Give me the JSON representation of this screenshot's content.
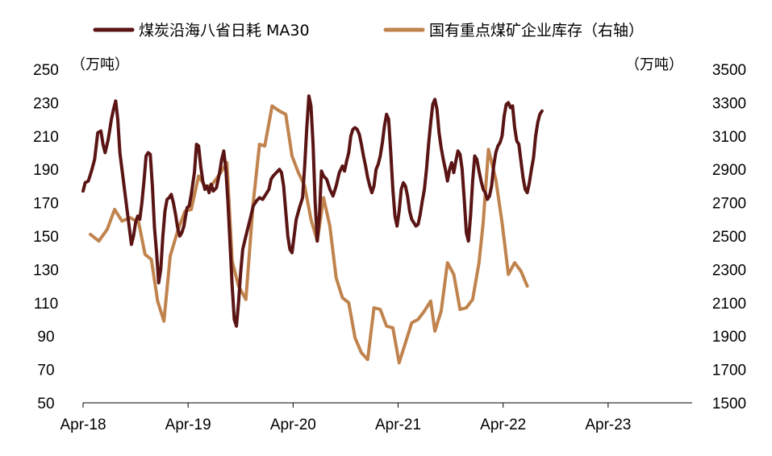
{
  "chart_data": {
    "type": "line",
    "legend_position": "top",
    "grid": false,
    "x_ticks": [
      "Apr-18",
      "Apr-19",
      "Apr-20",
      "Apr-21",
      "Apr-22",
      "Apr-23"
    ],
    "y_left": {
      "unit": "（万吨）",
      "ticks": [
        50,
        70,
        90,
        110,
        130,
        150,
        170,
        190,
        210,
        230,
        250
      ],
      "range": [
        50,
        250
      ]
    },
    "y_right": {
      "unit": "（万吨）",
      "ticks": [
        1500,
        1700,
        1900,
        2100,
        2300,
        2500,
        2700,
        2900,
        3100,
        3300,
        3500
      ],
      "range": [
        1500,
        3500
      ]
    },
    "x_range": [
      2018.25,
      2024.05
    ],
    "series": [
      {
        "name": "煤炭沿海八省日耗 MA30",
        "axis": "left",
        "color": "#5a1414",
        "points": [
          [
            2018.25,
            177
          ],
          [
            2018.27,
            182
          ],
          [
            2018.3,
            183
          ],
          [
            2018.33,
            189
          ],
          [
            2018.36,
            196
          ],
          [
            2018.39,
            212
          ],
          [
            2018.42,
            213
          ],
          [
            2018.44,
            205
          ],
          [
            2018.46,
            200
          ],
          [
            2018.49,
            208
          ],
          [
            2018.52,
            220
          ],
          [
            2018.54,
            226
          ],
          [
            2018.56,
            231
          ],
          [
            2018.58,
            220
          ],
          [
            2018.6,
            200
          ],
          [
            2018.63,
            185
          ],
          [
            2018.65,
            175
          ],
          [
            2018.67,
            165
          ],
          [
            2018.69,
            155
          ],
          [
            2018.71,
            145
          ],
          [
            2018.73,
            150
          ],
          [
            2018.75,
            158
          ],
          [
            2018.77,
            162
          ],
          [
            2018.79,
            160
          ],
          [
            2018.81,
            170
          ],
          [
            2018.83,
            183
          ],
          [
            2018.85,
            198
          ],
          [
            2018.87,
            200
          ],
          [
            2018.89,
            199
          ],
          [
            2018.91,
            180
          ],
          [
            2018.93,
            155
          ],
          [
            2018.95,
            140
          ],
          [
            2018.97,
            122
          ],
          [
            2018.99,
            130
          ],
          [
            2019.01,
            150
          ],
          [
            2019.03,
            165
          ],
          [
            2019.05,
            172
          ],
          [
            2019.07,
            173
          ],
          [
            2019.09,
            175
          ],
          [
            2019.11,
            170
          ],
          [
            2019.13,
            163
          ],
          [
            2019.15,
            155
          ],
          [
            2019.17,
            150
          ],
          [
            2019.19,
            152
          ],
          [
            2019.21,
            156
          ],
          [
            2019.24,
            167
          ],
          [
            2019.26,
            168
          ],
          [
            2019.28,
            175
          ],
          [
            2019.31,
            188
          ],
          [
            2019.33,
            205
          ],
          [
            2019.35,
            204
          ],
          [
            2019.37,
            192
          ],
          [
            2019.39,
            183
          ],
          [
            2019.41,
            178
          ],
          [
            2019.43,
            180
          ],
          [
            2019.45,
            176
          ],
          [
            2019.47,
            181
          ],
          [
            2019.49,
            177
          ],
          [
            2019.52,
            179
          ],
          [
            2019.55,
            188
          ],
          [
            2019.57,
            196
          ],
          [
            2019.59,
            201
          ],
          [
            2019.61,
            190
          ],
          [
            2019.63,
            170
          ],
          [
            2019.65,
            145
          ],
          [
            2019.67,
            120
          ],
          [
            2019.69,
            100
          ],
          [
            2019.71,
            96
          ],
          [
            2019.73,
            110
          ],
          [
            2019.75,
            128
          ],
          [
            2019.77,
            142
          ],
          [
            2019.8,
            150
          ],
          [
            2019.82,
            155
          ],
          [
            2019.84,
            160
          ],
          [
            2019.87,
            168
          ],
          [
            2019.9,
            171
          ],
          [
            2019.93,
            173
          ],
          [
            2019.96,
            172
          ],
          [
            2019.99,
            175
          ],
          [
            2020.02,
            178
          ],
          [
            2020.04,
            184
          ],
          [
            2020.06,
            186
          ],
          [
            2020.09,
            188
          ],
          [
            2020.12,
            190
          ],
          [
            2020.14,
            188
          ],
          [
            2020.16,
            180
          ],
          [
            2020.18,
            165
          ],
          [
            2020.2,
            150
          ],
          [
            2020.22,
            142
          ],
          [
            2020.24,
            140
          ],
          [
            2020.26,
            150
          ],
          [
            2020.28,
            160
          ],
          [
            2020.31,
            167
          ],
          [
            2020.34,
            173
          ],
          [
            2020.36,
            192
          ],
          [
            2020.38,
            215
          ],
          [
            2020.4,
            234
          ],
          [
            2020.42,
            228
          ],
          [
            2020.44,
            205
          ],
          [
            2020.46,
            170
          ],
          [
            2020.48,
            147
          ],
          [
            2020.5,
            162
          ],
          [
            2020.52,
            189
          ],
          [
            2020.54,
            186
          ],
          [
            2020.57,
            184
          ],
          [
            2020.6,
            178
          ],
          [
            2020.63,
            174
          ],
          [
            2020.66,
            180
          ],
          [
            2020.69,
            188
          ],
          [
            2020.72,
            192
          ],
          [
            2020.74,
            189
          ],
          [
            2020.76,
            195
          ],
          [
            2020.78,
            200
          ],
          [
            2020.8,
            210
          ],
          [
            2020.82,
            214
          ],
          [
            2020.84,
            215
          ],
          [
            2020.86,
            214
          ],
          [
            2020.88,
            211
          ],
          [
            2020.9,
            205
          ],
          [
            2020.92,
            198
          ],
          [
            2020.94,
            192
          ],
          [
            2020.96,
            185
          ],
          [
            2020.98,
            180
          ],
          [
            2021.0,
            176
          ],
          [
            2021.02,
            180
          ],
          [
            2021.04,
            190
          ],
          [
            2021.06,
            193
          ],
          [
            2021.08,
            198
          ],
          [
            2021.1,
            206
          ],
          [
            2021.12,
            216
          ],
          [
            2021.14,
            223
          ],
          [
            2021.16,
            220
          ],
          [
            2021.18,
            200
          ],
          [
            2021.2,
            178
          ],
          [
            2021.22,
            162
          ],
          [
            2021.24,
            156
          ],
          [
            2021.26,
            165
          ],
          [
            2021.28,
            178
          ],
          [
            2021.3,
            182
          ],
          [
            2021.32,
            180
          ],
          [
            2021.34,
            174
          ],
          [
            2021.36,
            165
          ],
          [
            2021.38,
            160
          ],
          [
            2021.4,
            158
          ],
          [
            2021.42,
            156
          ],
          [
            2021.44,
            157
          ],
          [
            2021.46,
            163
          ],
          [
            2021.48,
            171
          ],
          [
            2021.5,
            178
          ],
          [
            2021.52,
            190
          ],
          [
            2021.54,
            205
          ],
          [
            2021.56,
            218
          ],
          [
            2021.58,
            229
          ],
          [
            2021.6,
            232
          ],
          [
            2021.62,
            226
          ],
          [
            2021.64,
            212
          ],
          [
            2021.66,
            203
          ],
          [
            2021.68,
            196
          ],
          [
            2021.7,
            190
          ],
          [
            2021.72,
            183
          ],
          [
            2021.74,
            190
          ],
          [
            2021.76,
            194
          ],
          [
            2021.78,
            188
          ],
          [
            2021.8,
            195
          ],
          [
            2021.82,
            201
          ],
          [
            2021.84,
            199
          ],
          [
            2021.86,
            190
          ],
          [
            2021.88,
            172
          ],
          [
            2021.9,
            152
          ],
          [
            2021.92,
            147
          ],
          [
            2021.94,
            162
          ],
          [
            2021.96,
            183
          ],
          [
            2021.98,
            198
          ],
          [
            2022.0,
            196
          ],
          [
            2022.02,
            189
          ],
          [
            2022.04,
            183
          ],
          [
            2022.06,
            178
          ],
          [
            2022.08,
            176
          ],
          [
            2022.1,
            172
          ],
          [
            2022.12,
            174
          ],
          [
            2022.14,
            180
          ],
          [
            2022.16,
            192
          ],
          [
            2022.18,
            200
          ],
          [
            2022.2,
            204
          ],
          [
            2022.22,
            206
          ],
          [
            2022.24,
            210
          ],
          [
            2022.26,
            222
          ],
          [
            2022.28,
            229
          ],
          [
            2022.3,
            230
          ],
          [
            2022.32,
            227
          ],
          [
            2022.34,
            228
          ],
          [
            2022.36,
            215
          ],
          [
            2022.38,
            207
          ],
          [
            2022.4,
            205
          ],
          [
            2022.42,
            195
          ],
          [
            2022.44,
            185
          ],
          [
            2022.46,
            178
          ],
          [
            2022.48,
            176
          ],
          [
            2022.5,
            182
          ],
          [
            2022.52,
            190
          ],
          [
            2022.54,
            197
          ],
          [
            2022.56,
            210
          ],
          [
            2022.58,
            218
          ],
          [
            2022.6,
            223
          ],
          [
            2022.62,
            225
          ]
        ]
      },
      {
        "name": "国有重点煤矿企业库存（右轴）",
        "axis": "right",
        "color": "#c0834e",
        "points": [
          [
            2018.32,
            2510
          ],
          [
            2018.4,
            2470
          ],
          [
            2018.48,
            2540
          ],
          [
            2018.55,
            2660
          ],
          [
            2018.62,
            2590
          ],
          [
            2018.7,
            2610
          ],
          [
            2018.78,
            2580
          ],
          [
            2018.84,
            2390
          ],
          [
            2018.9,
            2360
          ],
          [
            2018.96,
            2110
          ],
          [
            2019.02,
            1990
          ],
          [
            2019.08,
            2380
          ],
          [
            2019.15,
            2530
          ],
          [
            2019.22,
            2650
          ],
          [
            2019.28,
            2660
          ],
          [
            2019.35,
            2860
          ],
          [
            2019.42,
            2790
          ],
          [
            2019.48,
            2810
          ],
          [
            2019.55,
            2870
          ],
          [
            2019.62,
            2940
          ],
          [
            2019.67,
            2350
          ],
          [
            2019.73,
            2200
          ],
          [
            2019.8,
            2120
          ],
          [
            2019.87,
            2700
          ],
          [
            2019.93,
            3050
          ],
          [
            2019.98,
            3040
          ],
          [
            2020.05,
            3280
          ],
          [
            2020.12,
            3250
          ],
          [
            2020.18,
            3230
          ],
          [
            2020.24,
            2980
          ],
          [
            2020.3,
            2880
          ],
          [
            2020.36,
            2800
          ],
          [
            2020.42,
            2600
          ],
          [
            2020.48,
            2470
          ],
          [
            2020.54,
            2730
          ],
          [
            2020.6,
            2560
          ],
          [
            2020.66,
            2250
          ],
          [
            2020.72,
            2130
          ],
          [
            2020.78,
            2100
          ],
          [
            2020.84,
            1890
          ],
          [
            2020.9,
            1800
          ],
          [
            2020.96,
            1760
          ],
          [
            2021.02,
            2070
          ],
          [
            2021.08,
            2060
          ],
          [
            2021.14,
            1960
          ],
          [
            2021.2,
            1950
          ],
          [
            2021.26,
            1740
          ],
          [
            2021.32,
            1860
          ],
          [
            2021.38,
            1980
          ],
          [
            2021.44,
            2000
          ],
          [
            2021.5,
            2050
          ],
          [
            2021.56,
            2110
          ],
          [
            2021.6,
            1930
          ],
          [
            2021.66,
            2050
          ],
          [
            2021.72,
            2340
          ],
          [
            2021.78,
            2270
          ],
          [
            2021.84,
            2060
          ],
          [
            2021.9,
            2070
          ],
          [
            2021.96,
            2120
          ],
          [
            2022.02,
            2340
          ],
          [
            2022.06,
            2580
          ],
          [
            2022.11,
            3020
          ],
          [
            2022.18,
            2840
          ],
          [
            2022.24,
            2580
          ],
          [
            2022.3,
            2270
          ],
          [
            2022.36,
            2340
          ],
          [
            2022.42,
            2290
          ],
          [
            2022.48,
            2200
          ]
        ]
      }
    ]
  }
}
